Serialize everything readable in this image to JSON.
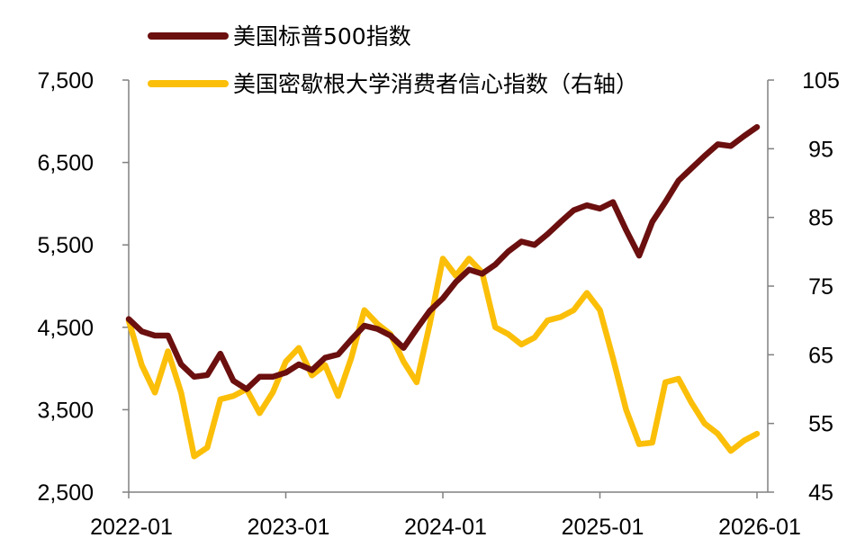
{
  "chart_data": {
    "type": "line",
    "title": "",
    "xlabel": "",
    "ylabel": "",
    "x_tick_labels": [
      "2022-01",
      "2023-01",
      "2024-01",
      "2025-01",
      "2026-01"
    ],
    "y_left": {
      "ylim": [
        2500,
        7500
      ],
      "ticks": [
        2500,
        3500,
        4500,
        5500,
        6500,
        7500
      ],
      "tick_labels": [
        "2,500",
        "3,500",
        "4,500",
        "5,500",
        "6,500",
        "7,500"
      ]
    },
    "y_right": {
      "ylim": [
        45,
        105
      ],
      "ticks": [
        45,
        55,
        65,
        75,
        85,
        95,
        105
      ],
      "tick_labels": [
        "45",
        "55",
        "65",
        "75",
        "85",
        "95",
        "105"
      ]
    },
    "legend_position": "top",
    "grid": false,
    "x": [
      "2022-01",
      "2022-02",
      "2022-03",
      "2022-04",
      "2022-05",
      "2022-06",
      "2022-07",
      "2022-08",
      "2022-09",
      "2022-10",
      "2022-11",
      "2022-12",
      "2023-01",
      "2023-02",
      "2023-03",
      "2023-04",
      "2023-05",
      "2023-06",
      "2023-07",
      "2023-08",
      "2023-09",
      "2023-10",
      "2023-11",
      "2023-12",
      "2024-01",
      "2024-02",
      "2024-03",
      "2024-04",
      "2024-05",
      "2024-06",
      "2024-07",
      "2024-08",
      "2024-09",
      "2024-10",
      "2024-11",
      "2024-12",
      "2025-01",
      "2025-02",
      "2025-03",
      "2025-04",
      "2025-05",
      "2025-06",
      "2025-07",
      "2025-08",
      "2025-09",
      "2025-10",
      "2025-11",
      "2025-12",
      "2026-01"
    ],
    "series": [
      {
        "name": "美国标普500指数",
        "axis": "left",
        "color": "#6b0f0f",
        "values": [
          4600,
          4450,
          4400,
          4400,
          4050,
          3900,
          3920,
          4180,
          3850,
          3750,
          3900,
          3900,
          3950,
          4050,
          3980,
          4130,
          4170,
          4350,
          4520,
          4480,
          4400,
          4250,
          4480,
          4700,
          4850,
          5050,
          5200,
          5150,
          5260,
          5420,
          5540,
          5500,
          5630,
          5780,
          5920,
          5980,
          5940,
          6020,
          5680,
          5370,
          5780,
          6020,
          6280,
          6430,
          6580,
          6720,
          6700,
          6820,
          6930
        ]
      },
      {
        "name": "美国密歇根大学消费者信心指数（右轴）",
        "axis": "right",
        "color": "#fbbf09",
        "values": [
          70.0,
          63.5,
          59.5,
          65.5,
          59.5,
          50.2,
          51.5,
          58.5,
          59.0,
          60.0,
          56.5,
          59.5,
          64.0,
          66.0,
          62.0,
          63.5,
          59.0,
          64.5,
          71.5,
          69.5,
          68.0,
          64.0,
          61.0,
          69.5,
          79.0,
          76.5,
          79.0,
          77.0,
          69.0,
          68.0,
          66.5,
          67.5,
          70.0,
          70.5,
          71.5,
          74.0,
          71.5,
          64.5,
          57.0,
          52.0,
          52.2,
          61.0,
          61.5,
          58.0,
          55.0,
          53.5,
          51.0,
          52.5,
          53.5
        ]
      }
    ]
  }
}
